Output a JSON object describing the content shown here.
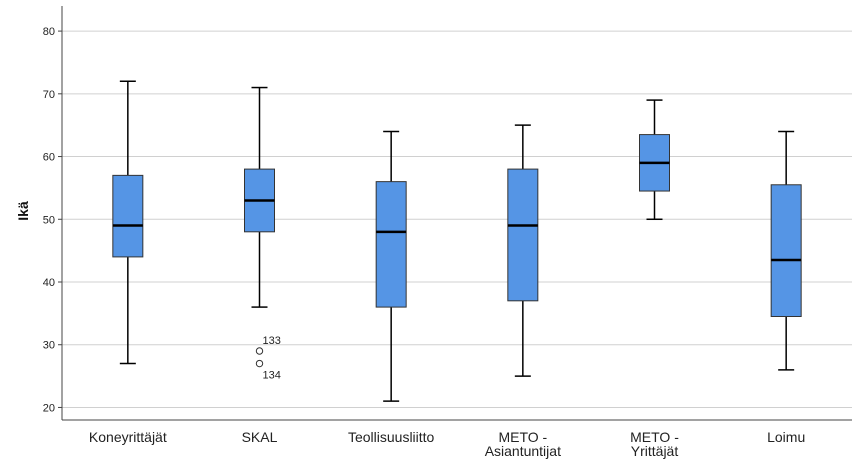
{
  "chart_data": {
    "type": "boxplot",
    "ylabel": "Ikä",
    "ylim": [
      18,
      84
    ],
    "yticks": [
      20,
      30,
      40,
      50,
      60,
      70,
      80
    ],
    "grid": true,
    "box_color": "#5595e5",
    "series": [
      {
        "category": [
          "Koneyrittäjät"
        ],
        "min": 27,
        "q1": 44,
        "median": 49,
        "q3": 57,
        "max": 72,
        "outliers": []
      },
      {
        "category": [
          "SKAL"
        ],
        "min": 36,
        "q1": 48,
        "median": 53,
        "q3": 58,
        "max": 71,
        "outliers": [
          {
            "value": 29,
            "label": "133"
          },
          {
            "value": 27,
            "label": "134"
          }
        ]
      },
      {
        "category": [
          "Teollisuusliitto"
        ],
        "min": 21,
        "q1": 36,
        "median": 48,
        "q3": 56,
        "max": 64,
        "outliers": []
      },
      {
        "category": [
          "METO -",
          "Asiantuntijat"
        ],
        "min": 25,
        "q1": 37,
        "median": 49,
        "q3": 58,
        "max": 65,
        "outliers": []
      },
      {
        "category": [
          "METO -",
          "Yrittäjät"
        ],
        "min": 50,
        "q1": 54.5,
        "median": 59,
        "q3": 63.5,
        "max": 69,
        "outliers": []
      },
      {
        "category": [
          "Loimu"
        ],
        "min": 26,
        "q1": 34.5,
        "median": 43.5,
        "q3": 55.5,
        "max": 64,
        "outliers": []
      }
    ]
  }
}
